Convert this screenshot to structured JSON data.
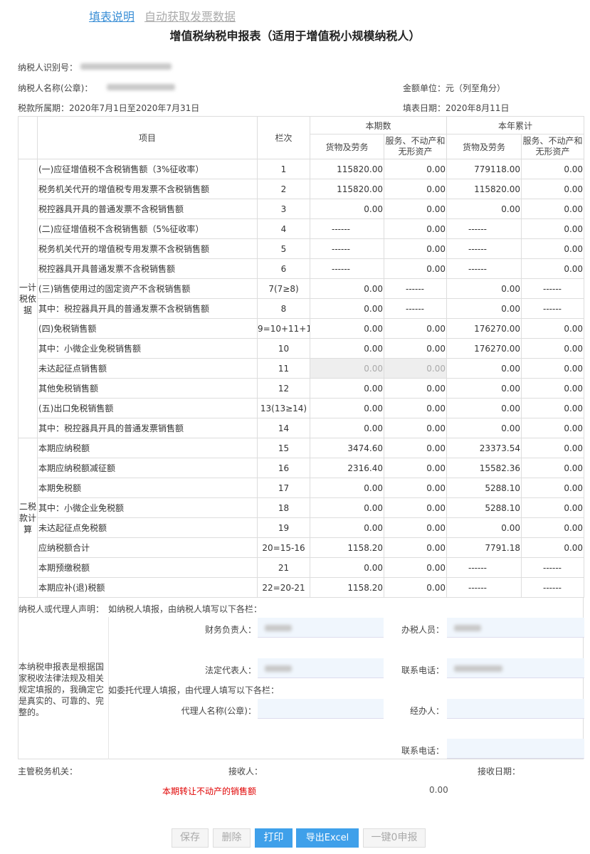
{
  "top_links": {
    "instructions": "填表说明",
    "auto_fetch": "自动获取发票数据"
  },
  "title": "增值税纳税申报表（适用于增值税小规模纳税人）",
  "meta": {
    "taxpayer_id_label": "纳税人识别号：",
    "taxpayer_name_label": "纳税人名称(公章)：",
    "unit": "金额单位：元（列至角分）",
    "period": "税款所属期：2020年7月1日至2020年7月31日",
    "fill_date": "填表日期：2020年8月11日"
  },
  "table": {
    "headers": {
      "item": "项目",
      "line": "栏次",
      "current": "本期数",
      "ytd": "本年累计",
      "goods": "货物及劳务",
      "services": "服务、不动产和无形资产"
    },
    "section1_label": "一计税依据",
    "section2_label": "二税款计算",
    "rows": [
      [
        "(一)应征增值税不含税销售额（3%征收率）",
        "1",
        "115820.00",
        "0.00",
        "779118.00",
        "0.00"
      ],
      [
        "税务机关代开的增值税专用发票不含税销售额",
        "2",
        "115820.00",
        "0.00",
        "115820.00",
        "0.00"
      ],
      [
        "税控器具开具的普通发票不含税销售额",
        "3",
        "0.00",
        "0.00",
        "0.00",
        "0.00"
      ],
      [
        "(二)应征增值税不含税销售额（5%征收率）",
        "4",
        "------",
        "0.00",
        "------",
        "0.00"
      ],
      [
        "税务机关代开的增值税专用发票不含税销售额",
        "5",
        "------",
        "0.00",
        "------",
        "0.00"
      ],
      [
        "税控器具开具普通发票不含税销售额",
        "6",
        "------",
        "0.00",
        "------",
        "0.00"
      ],
      [
        "(三)销售使用过的固定资产不含税销售额",
        "7(7≥8)",
        "0.00",
        "------",
        "0.00",
        "------"
      ],
      [
        "其中：税控器具开具的普通发票不含税销售额",
        "8",
        "0.00",
        "------",
        "0.00",
        "------"
      ],
      [
        "(四)免税销售额",
        "9=10+11+12",
        "0.00",
        "0.00",
        "176270.00",
        "0.00"
      ],
      [
        "其中：小微企业免税销售额",
        "10",
        "0.00",
        "0.00",
        "176270.00",
        "0.00"
      ],
      [
        "未达起征点销售额",
        "11",
        "0.00",
        "0.00",
        "0.00",
        "0.00"
      ],
      [
        "其他免税销售额",
        "12",
        "0.00",
        "0.00",
        "0.00",
        "0.00"
      ],
      [
        "(五)出口免税销售额",
        "13(13≥14)",
        "0.00",
        "0.00",
        "0.00",
        "0.00"
      ],
      [
        "其中：税控器具开具的普通发票销售额",
        "14",
        "0.00",
        "0.00",
        "0.00",
        "0.00"
      ],
      [
        "本期应纳税额",
        "15",
        "3474.60",
        "0.00",
        "23373.54",
        "0.00"
      ],
      [
        "本期应纳税额减征额",
        "16",
        "2316.40",
        "0.00",
        "15582.36",
        "0.00"
      ],
      [
        "本期免税额",
        "17",
        "0.00",
        "0.00",
        "5288.10",
        "0.00"
      ],
      [
        "其中：小微企业免税额",
        "18",
        "0.00",
        "0.00",
        "5288.10",
        "0.00"
      ],
      [
        "未达起征点免税额",
        "19",
        "0.00",
        "0.00",
        "0.00",
        "0.00"
      ],
      [
        "应纳税额合计",
        "20=15-16",
        "1158.20",
        "0.00",
        "7791.18",
        "0.00"
      ],
      [
        "本期预缴税额",
        "21",
        "0.00",
        "0.00",
        "------",
        "------"
      ],
      [
        "本期应补(退)税额",
        "22=20-21",
        "1158.20",
        "0.00",
        "------",
        "------"
      ]
    ]
  },
  "declaration": {
    "heading": "纳税人或代理人声明：",
    "self_fill": "如纳税人填报，由纳税人填写以下各栏：",
    "statement": "本纳税申报表是根据国家税收法律法规及相关规定填报的，我确定它是真实的、可靠的、完整的。",
    "finance_head": "财务负责人：",
    "tax_officer": "办税人员：",
    "legal_rep": "法定代表人：",
    "phone": "联系电话：",
    "agent_fill": "如委托代理人填报，由代理人填写以下各栏：",
    "agent_name": "代理人名称(公章)：",
    "handler": "经办人：",
    "agent_phone": "联系电话："
  },
  "footer": {
    "tax_authority": "主管税务机关：",
    "receiver": "接收人：",
    "receive_date": "接收日期：",
    "realestate_label": "本期转让不动产的销售额",
    "realestate_value": "0.00"
  },
  "buttons": {
    "save": "保存",
    "delete": "删除",
    "print": "打印",
    "export": "导出Excel",
    "zero": "一键0申报"
  },
  "colors": {
    "accent": "#3fa0ea",
    "warning": "#e00000",
    "disabled_cell": "#eeeeee",
    "input_bg": "#f0f6fd"
  }
}
